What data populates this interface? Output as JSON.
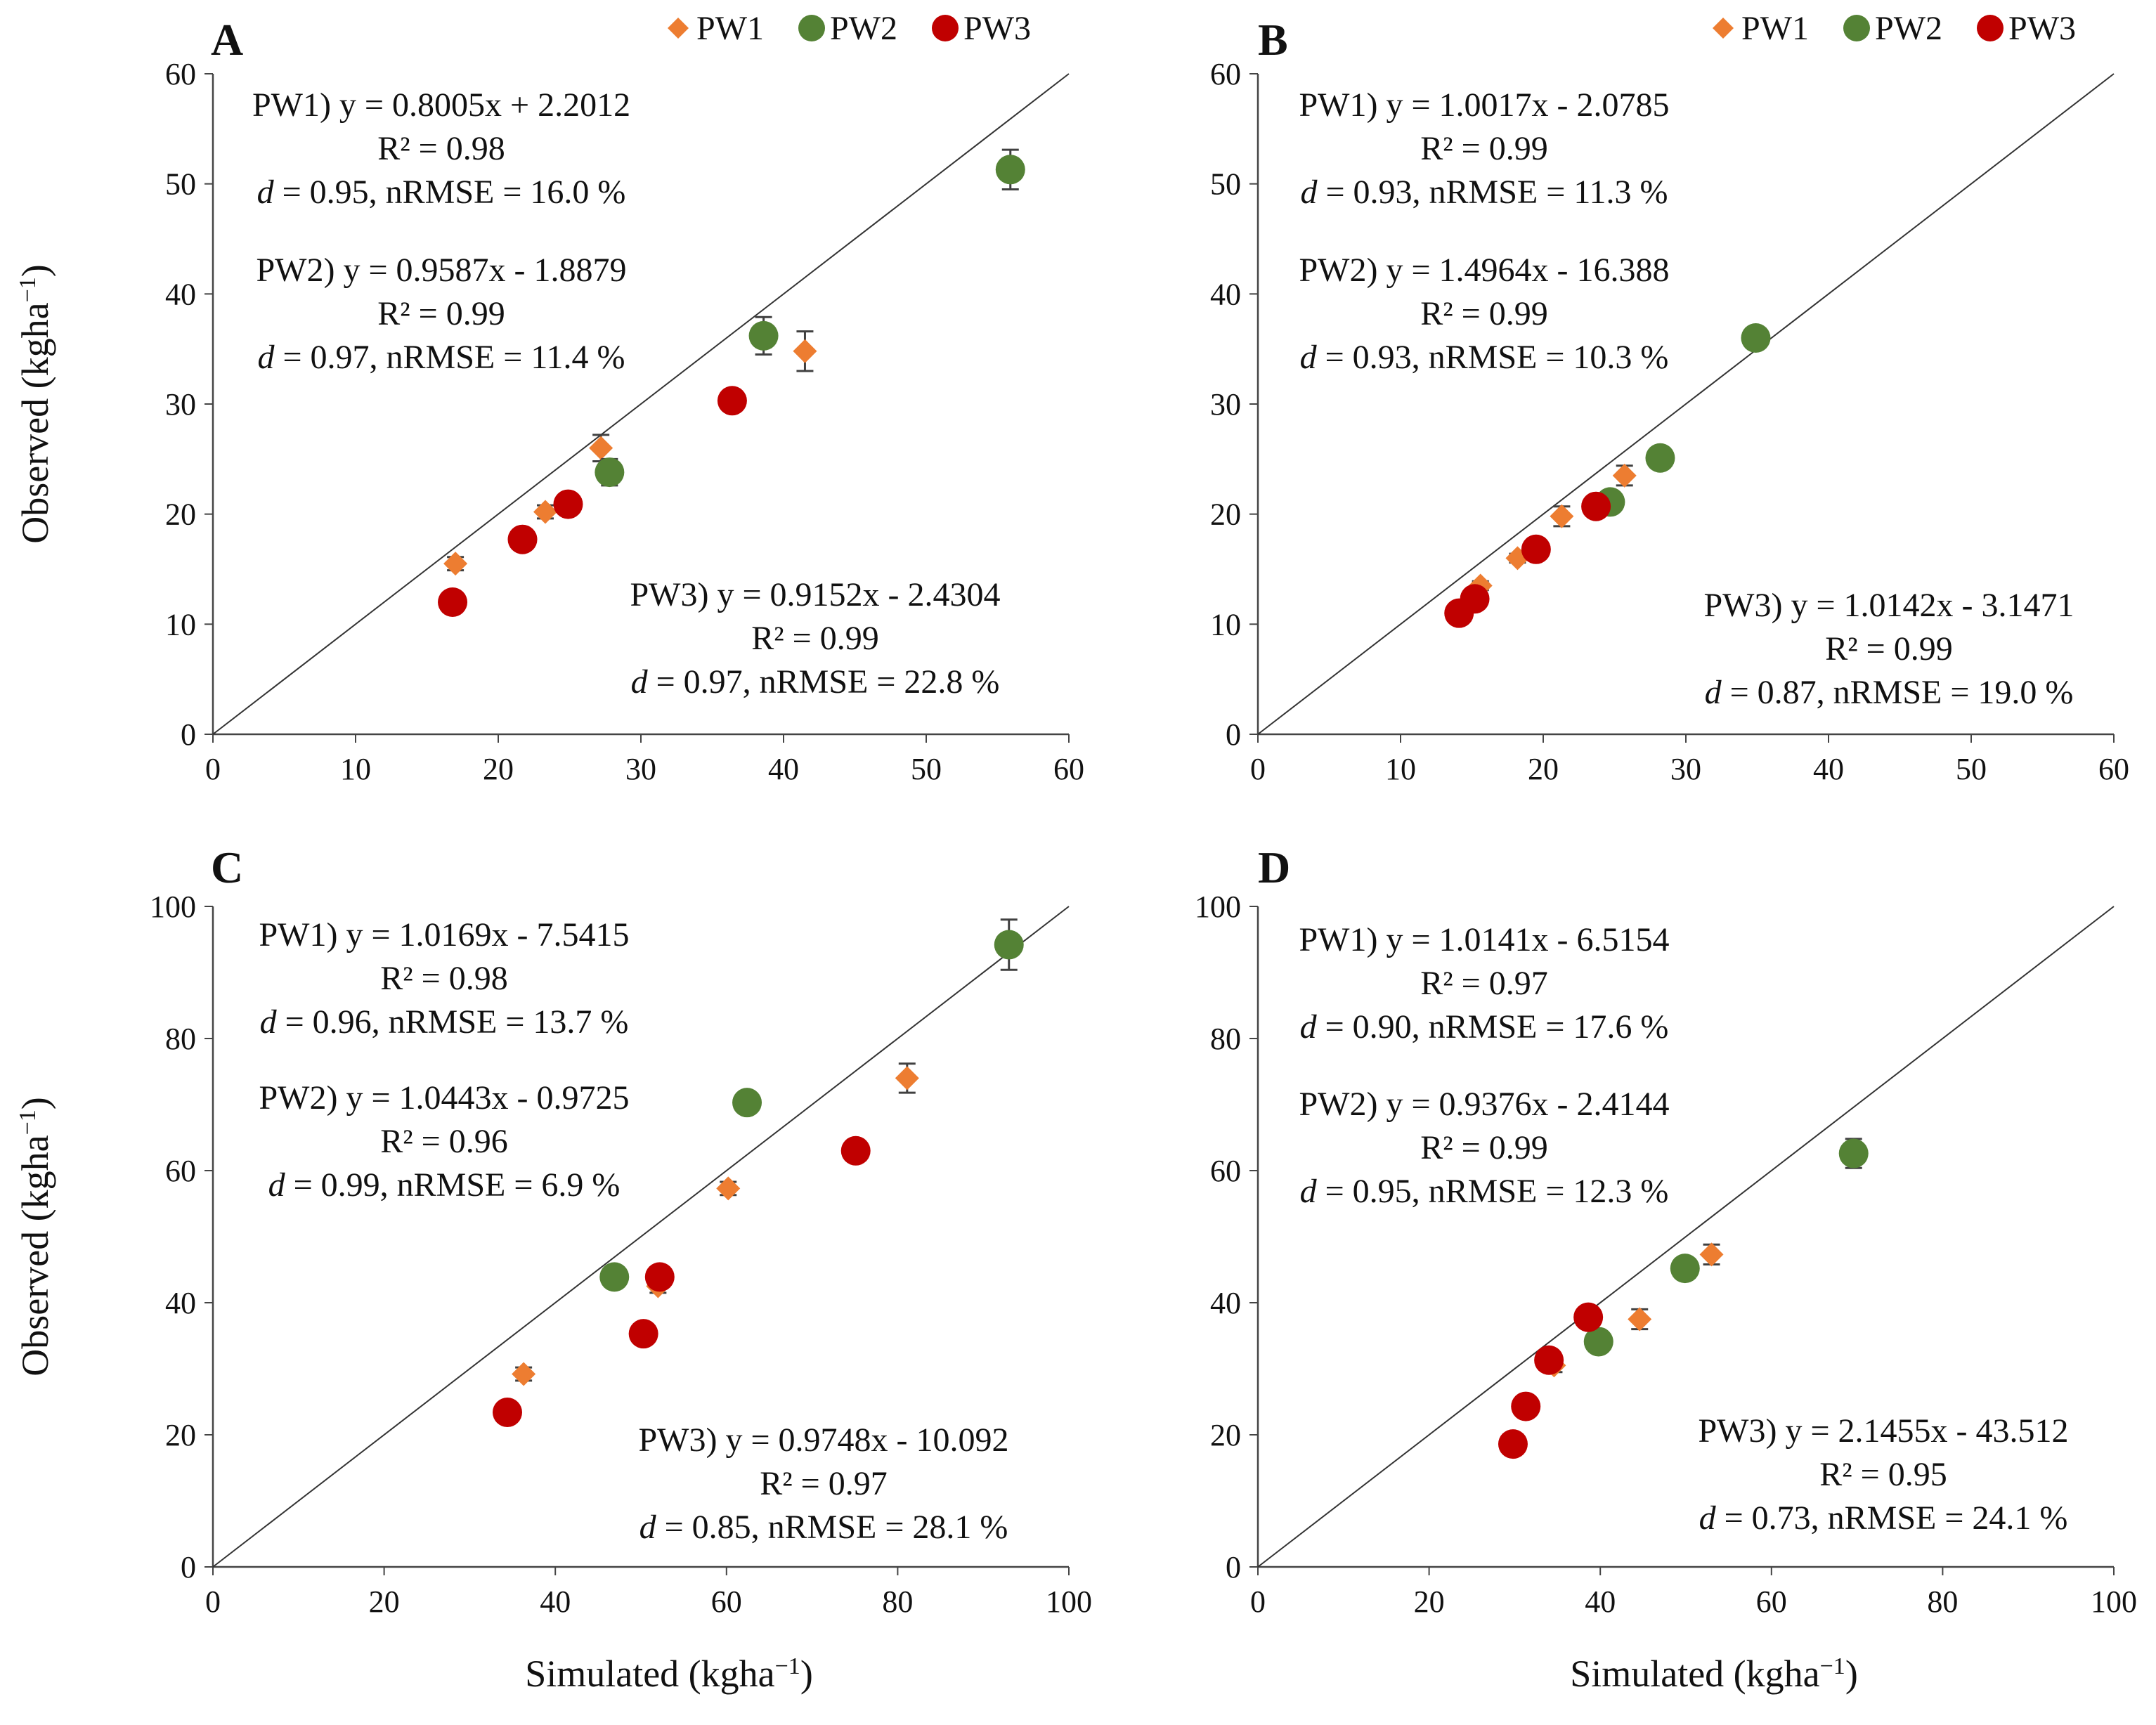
{
  "figure": {
    "xlabel_main": "Simulated (kgha",
    "ylabel_main": "Observed (kgha",
    "unit_exponent": "−1",
    "legend": [
      {
        "name": "PW1",
        "marker": "diamond",
        "color": "#ED7D31"
      },
      {
        "name": "PW2",
        "marker": "circle",
        "color": "#548235"
      },
      {
        "name": "PW3",
        "marker": "circle",
        "color": "#C00000"
      }
    ],
    "errorbar_color": "#404040"
  },
  "chart_data": [
    {
      "type": "scatter",
      "panel": "A",
      "xlim": [
        0,
        60
      ],
      "ylim": [
        0,
        60
      ],
      "xticks": [
        0,
        10,
        20,
        30,
        40,
        50,
        60
      ],
      "yticks": [
        0,
        10,
        20,
        30,
        40,
        50,
        60
      ],
      "reference_line": "1:1",
      "series": [
        {
          "name": "PW1",
          "points": [
            {
              "x": 17.0,
              "y": 15.5,
              "err": 0.6
            },
            {
              "x": 23.3,
              "y": 20.2,
              "err": 0.6
            },
            {
              "x": 27.2,
              "y": 26.0,
              "err": 1.2
            },
            {
              "x": 41.5,
              "y": 34.8,
              "err": 1.8
            }
          ]
        },
        {
          "name": "PW2",
          "points": [
            {
              "x": 27.8,
              "y": 23.8,
              "err": 1.2
            },
            {
              "x": 38.6,
              "y": 36.2,
              "err": 1.7
            },
            {
              "x": 55.9,
              "y": 51.3,
              "err": 1.8
            }
          ]
        },
        {
          "name": "PW3",
          "points": [
            {
              "x": 16.8,
              "y": 12.0,
              "err": 0
            },
            {
              "x": 21.7,
              "y": 17.7,
              "err": 0.5
            },
            {
              "x": 24.9,
              "y": 20.9,
              "err": 0.5
            },
            {
              "x": 36.4,
              "y": 30.3,
              "err": 0.6
            }
          ]
        }
      ],
      "annotations": [
        {
          "lines": [
            "PW1) y = 0.8005x  + 2.2012",
            "R² = 0.98",
            "d = 0.95, nRMSE = 16.0 %"
          ]
        },
        {
          "lines": [
            "PW2) y = 0.9587x  - 1.8879",
            "R² = 0.99",
            "d = 0.97, nRMSE = 11.4 %"
          ]
        },
        {
          "lines": [
            "PW3) y = 0.9152x  - 2.4304",
            "R² = 0.99",
            "d = 0.97, nRMSE = 22.8 %"
          ]
        }
      ]
    },
    {
      "type": "scatter",
      "panel": "B",
      "xlim": [
        0,
        60
      ],
      "ylim": [
        0,
        60
      ],
      "xticks": [
        0,
        10,
        20,
        30,
        40,
        50,
        60
      ],
      "yticks": [
        0,
        10,
        20,
        30,
        40,
        50,
        60
      ],
      "reference_line": "1:1",
      "series": [
        {
          "name": "PW1",
          "points": [
            {
              "x": 15.6,
              "y": 13.5,
              "err": 0.4
            },
            {
              "x": 18.2,
              "y": 16.0,
              "err": 0.4
            },
            {
              "x": 21.3,
              "y": 19.8,
              "err": 0.9
            },
            {
              "x": 25.7,
              "y": 23.5,
              "err": 0.9
            }
          ]
        },
        {
          "name": "PW2",
          "points": [
            {
              "x": 24.7,
              "y": 21.1,
              "err": 0.5
            },
            {
              "x": 28.2,
              "y": 25.1,
              "err": 0.5
            },
            {
              "x": 34.9,
              "y": 36.0,
              "err": 0.7
            }
          ]
        },
        {
          "name": "PW3",
          "points": [
            {
              "x": 14.1,
              "y": 11.0,
              "err": 0
            },
            {
              "x": 15.2,
              "y": 12.3,
              "err": 0.5
            },
            {
              "x": 19.5,
              "y": 16.8,
              "err": 0
            },
            {
              "x": 23.7,
              "y": 20.7,
              "err": 0.5
            }
          ]
        }
      ],
      "annotations": [
        {
          "lines": [
            "PW1) y = 1.0017x  - 2.0785",
            "R² = 0.99",
            "d = 0.93, nRMSE = 11.3 %"
          ]
        },
        {
          "lines": [
            "PW2) y = 1.4964x  - 16.388",
            "R² = 0.99",
            "d = 0.93, nRMSE = 10.3 %"
          ]
        },
        {
          "lines": [
            "PW3) y = 1.0142x  - 3.1471",
            "R² = 0.99",
            "d = 0.87, nRMSE = 19.0 %"
          ]
        }
      ]
    },
    {
      "type": "scatter",
      "panel": "C",
      "xlim": [
        0,
        100
      ],
      "ylim": [
        0,
        100
      ],
      "xticks": [
        0,
        20,
        40,
        60,
        80,
        100
      ],
      "yticks": [
        0,
        20,
        40,
        60,
        80,
        100
      ],
      "reference_line": "1:1",
      "series": [
        {
          "name": "PW1",
          "points": [
            {
              "x": 36.3,
              "y": 29.2,
              "err": 1.0
            },
            {
              "x": 52.0,
              "y": 42.5,
              "err": 1.0
            },
            {
              "x": 60.2,
              "y": 57.3,
              "err": 1.0
            },
            {
              "x": 81.1,
              "y": 74.0,
              "err": 2.2
            }
          ]
        },
        {
          "name": "PW2",
          "points": [
            {
              "x": 46.9,
              "y": 43.9,
              "err": 1.0
            },
            {
              "x": 62.4,
              "y": 70.3,
              "err": 1.0
            },
            {
              "x": 93.0,
              "y": 94.2,
              "err": 3.8
            }
          ]
        },
        {
          "name": "PW3",
          "points": [
            {
              "x": 34.4,
              "y": 23.4,
              "err": 0
            },
            {
              "x": 50.3,
              "y": 35.3,
              "err": 0
            },
            {
              "x": 52.2,
              "y": 43.9,
              "err": 1.5
            },
            {
              "x": 75.1,
              "y": 63.0,
              "err": 1.0
            }
          ]
        }
      ],
      "annotations": [
        {
          "lines": [
            "PW1) y = 1.0169x  - 7.5415",
            "R² = 0.98",
            "d = 0.96, nRMSE = 13.7 %"
          ]
        },
        {
          "lines": [
            "PW2) y = 1.0443x  - 0.9725",
            "R² = 0.96",
            "d = 0.99, nRMSE = 6.9 %"
          ]
        },
        {
          "lines": [
            "PW3) y = 0.9748x  - 10.092",
            "R² = 0.97",
            "d = 0.85, nRMSE = 28.1 %"
          ]
        }
      ]
    },
    {
      "type": "scatter",
      "panel": "D",
      "xlim": [
        0,
        100
      ],
      "ylim": [
        0,
        100
      ],
      "xticks": [
        0,
        20,
        40,
        60,
        80,
        100
      ],
      "yticks": [
        0,
        20,
        40,
        60,
        80,
        100
      ],
      "reference_line": "1:1",
      "series": [
        {
          "name": "PW1",
          "points": [
            {
              "x": 34.6,
              "y": 30.5,
              "err": 1.0
            },
            {
              "x": 44.6,
              "y": 37.5,
              "err": 1.5
            },
            {
              "x": 53.0,
              "y": 47.3,
              "err": 1.5
            }
          ]
        },
        {
          "name": "PW2",
          "points": [
            {
              "x": 39.8,
              "y": 34.1,
              "err": 1.0
            },
            {
              "x": 49.9,
              "y": 45.2,
              "err": 1.0
            },
            {
              "x": 69.6,
              "y": 62.6,
              "err": 2.2
            }
          ]
        },
        {
          "name": "PW3",
          "points": [
            {
              "x": 29.8,
              "y": 18.6,
              "err": 0
            },
            {
              "x": 31.3,
              "y": 24.3,
              "err": 0
            },
            {
              "x": 34.0,
              "y": 31.3,
              "err": 0.8
            },
            {
              "x": 38.6,
              "y": 37.8,
              "err": 0.8
            }
          ]
        }
      ],
      "annotations": [
        {
          "lines": [
            "PW1) y = 1.0141x  - 6.5154",
            "R² = 0.97",
            "d = 0.90, nRMSE = 17.6 %"
          ]
        },
        {
          "lines": [
            "PW2) y = 0.9376x  - 2.4144",
            "R² = 0.99",
            "d = 0.95, nRMSE = 12.3 %"
          ]
        },
        {
          "lines": [
            "PW3) y = 2.1455x  - 43.512",
            "R² = 0.95",
            "d = 0.73, nRMSE = 24.1 %"
          ]
        }
      ]
    }
  ]
}
